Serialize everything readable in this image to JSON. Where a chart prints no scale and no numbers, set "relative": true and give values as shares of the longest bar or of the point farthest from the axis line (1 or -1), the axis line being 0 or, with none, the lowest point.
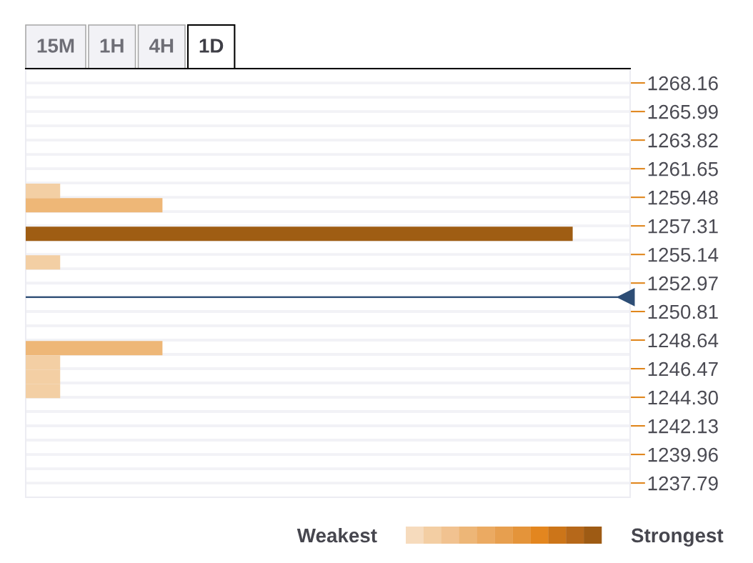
{
  "chart_data": {
    "type": "bar",
    "orientation": "horizontal",
    "relative": true,
    "x": [
      1259.97,
      1258.88,
      1256.71,
      1254.54,
      1248.03,
      1246.95,
      1245.86,
      1244.78
    ],
    "values": [
      0.063,
      0.25,
      1,
      0.063,
      0.25,
      0.063,
      0.063,
      0.063
    ],
    "colors": [
      "#f3cfa4",
      "#eeb777",
      "#9f5d13",
      "#f3cfa4",
      "#eeb777",
      "#f3cfa4",
      "#f3cfa4",
      "#f3cfa4"
    ],
    "ylim": [
      1236.71,
      1269.25
    ],
    "yticks": [
      1268.16,
      1265.99,
      1263.82,
      1261.65,
      1259.48,
      1257.31,
      1255.14,
      1252.97,
      1250.81,
      1248.64,
      1246.47,
      {
        "value": 1244.3,
        "label": "1244.30"
      },
      1242.13,
      1239.96,
      1237.79
    ],
    "grid": "y",
    "tick_labels": "y",
    "ref_lines": [
      {
        "axis": "y",
        "value": 1251.9,
        "color": "#2d4d75"
      }
    ],
    "annotations": [
      "15M",
      "1H",
      "4H",
      "1D",
      "Weakest",
      "Strongest"
    ]
  }
}
